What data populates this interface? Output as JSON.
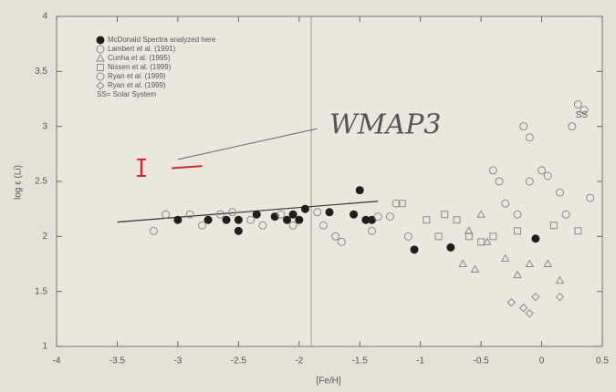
{
  "chart_data": {
    "type": "scatter",
    "x_label": "[Fe/H]",
    "y_label": "log ε (Li)",
    "xlim": [
      -4,
      0.5
    ],
    "ylim": [
      1,
      4
    ],
    "xticks": [
      -4,
      -3.5,
      -3,
      -2.5,
      -2,
      -1.5,
      -1,
      -0.5,
      0,
      0.5
    ],
    "yticks": [
      1,
      1.5,
      2,
      2.5,
      3,
      3.5,
      4
    ],
    "legend": "upper left",
    "reference_line": {
      "x": -1.9,
      "color": "#9a9a9a"
    },
    "fit_line": {
      "x": [
        -3.5,
        -1.35
      ],
      "y": [
        2.13,
        2.32
      ],
      "color": "#333333"
    },
    "series": [
      {
        "name": "McDonald Spectra analyzed here",
        "marker": "filled-circle",
        "color": "#1e1e1e",
        "x": [
          -3,
          -2.75,
          -2.6,
          -2.5,
          -2.5,
          -2.35,
          -2.2,
          -2.1,
          -2.05,
          -2,
          -1.95,
          -1.75,
          -1.55,
          -1.5,
          -1.45,
          -1.4,
          -1.05,
          -0.75,
          -0.05
        ],
        "values": [
          2.15,
          2.15,
          2.15,
          2.15,
          2.05,
          2.2,
          2.18,
          2.15,
          2.2,
          2.15,
          2.25,
          2.22,
          2.2,
          2.42,
          2.15,
          2.15,
          1.88,
          1.9,
          1.98
        ]
      },
      {
        "name": "Lambert et al. (1991)",
        "marker": "circle",
        "color": "#8a8a8a",
        "x": [
          -0.4,
          -0.35,
          -0.3,
          -0.2,
          -0.1,
          0,
          0.05,
          0.15,
          0.2,
          0.25,
          0.3,
          0.35,
          0.4,
          -0.15,
          -0.1
        ],
        "values": [
          2.6,
          2.5,
          2.3,
          2.2,
          2.5,
          2.6,
          2.55,
          2.4,
          2.2,
          3.0,
          3.2,
          3.15,
          2.35,
          3.0,
          2.9
        ]
      },
      {
        "name": "Cunha et al. (1995)",
        "marker": "triangle",
        "color": "#8a8a8a",
        "x": [
          -0.5,
          -0.45,
          -0.6,
          -0.55,
          -0.65,
          -0.3,
          -0.2,
          -0.1,
          0.05,
          0.15
        ],
        "values": [
          2.2,
          1.95,
          2.05,
          1.7,
          1.75,
          1.8,
          1.65,
          1.75,
          1.75,
          1.6
        ]
      },
      {
        "name": "Nissen et al. (1999)",
        "marker": "square",
        "color": "#8a8a8a",
        "x": [
          -1.15,
          -0.95,
          -0.85,
          -0.8,
          -0.7,
          -0.6,
          -0.5,
          -0.4,
          -0.2,
          0.1,
          0.3
        ],
        "values": [
          2.3,
          2.15,
          2.0,
          2.2,
          2.15,
          2.0,
          1.95,
          2.0,
          2.05,
          2.1,
          2.05
        ]
      },
      {
        "name": "Ryan et al. (1999)",
        "marker": "circle",
        "color": "#8a8a8a",
        "x": [
          -3.2,
          -3.1,
          -2.9,
          -2.8,
          -2.65,
          -2.55,
          -2.4,
          -2.3,
          -2.15,
          -2.05,
          -1.85,
          -1.8,
          -1.7,
          -1.65,
          -1.4,
          -1.35,
          -1.25,
          -1.2,
          -1.1
        ],
        "values": [
          2.05,
          2.2,
          2.2,
          2.1,
          2.2,
          2.22,
          2.15,
          2.1,
          2.2,
          2.1,
          2.22,
          2.1,
          2.0,
          1.95,
          2.05,
          2.18,
          2.18,
          2.3,
          2.0
        ]
      },
      {
        "name": "Ryan et al. (1999)",
        "marker": "diamond",
        "color": "#8a8a8a",
        "x": [
          -0.25,
          -0.15,
          -0.1,
          -0.05,
          0.15
        ],
        "values": [
          1.4,
          1.35,
          1.3,
          1.45,
          1.45
        ]
      },
      {
        "name": "SS= Solar System",
        "marker": "text",
        "marker_label": "SS",
        "color": "#8a8a8a",
        "x": [
          0.33
        ],
        "values": [
          3.1
        ]
      }
    ],
    "annotation": {
      "text": "WMAP3",
      "x": -1.75,
      "y": 3.0,
      "color": "#cc2a2a",
      "error_bar": {
        "x": -3.3,
        "y": [
          2.55,
          2.7
        ]
      },
      "dash": {
        "x": [
          -3.05,
          -2.8
        ],
        "y": [
          2.62,
          2.64
        ]
      },
      "connector": {
        "x": [
          -3.0,
          -1.85
        ],
        "y": [
          2.7,
          2.98
        ]
      }
    }
  }
}
